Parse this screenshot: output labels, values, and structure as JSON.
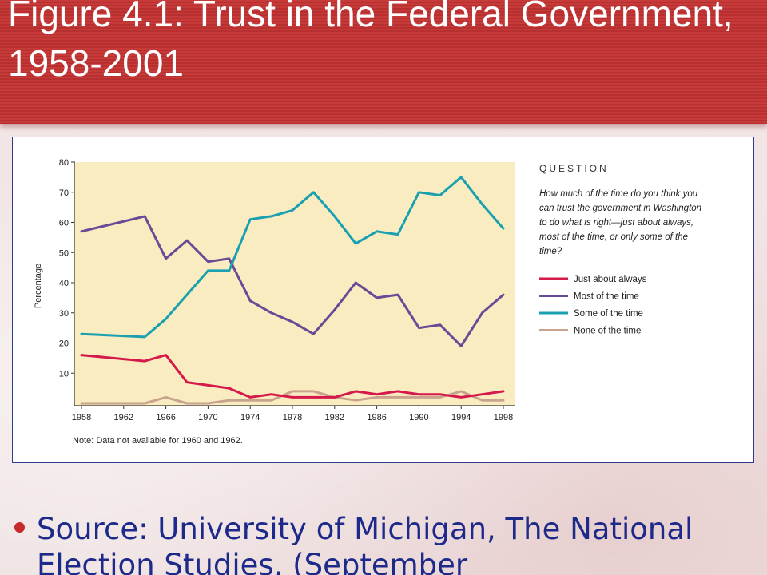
{
  "slide": {
    "title": "Figure 4.1: Trust in the Federal Government, 1958-2001",
    "source": "Source: University of Michigan, The National Election Studies, (September"
  },
  "colors": {
    "header_red": "#c63a3a",
    "plot_background": "#f8ecc0",
    "just_about_always": "#d6194b",
    "most_of_the_time": "#6a4a96",
    "some_of_the_time": "#1aa0b0",
    "none_of_the_time": "#c8a48e",
    "source_text": "#1e2a8a"
  },
  "chart_data": {
    "type": "line",
    "ylabel": "Percentage",
    "ylim": [
      0,
      80
    ],
    "yticks": [
      10,
      20,
      30,
      40,
      50,
      60,
      70,
      80
    ],
    "xlim": [
      1958,
      1998
    ],
    "xticks": [
      1958,
      1962,
      1966,
      1970,
      1974,
      1978,
      1982,
      1986,
      1990,
      1994,
      1998
    ],
    "note": "Note:  Data not available for 1960 and 1962.",
    "question_heading": "QUESTION",
    "question_text": "How much of the time do you think you can trust the government in Washington to do what is right—just about always, most of the time, or only some of the time?",
    "grid": false,
    "legend_position": "right",
    "x": [
      1958,
      1964,
      1966,
      1968,
      1970,
      1972,
      1974,
      1976,
      1978,
      1980,
      1982,
      1984,
      1986,
      1988,
      1990,
      1992,
      1994,
      1996,
      1998
    ],
    "series": [
      {
        "name": "Just about always",
        "color_key": "just_about_always",
        "values": [
          16,
          14,
          16,
          7,
          6,
          5,
          2,
          3,
          2,
          2,
          2,
          4,
          3,
          4,
          3,
          3,
          2,
          3,
          4
        ]
      },
      {
        "name": "Most of the time",
        "color_key": "most_of_the_time",
        "values": [
          57,
          62,
          48,
          54,
          47,
          48,
          34,
          30,
          27,
          23,
          31,
          40,
          35,
          36,
          25,
          26,
          19,
          30,
          36
        ]
      },
      {
        "name": "Some of the time",
        "color_key": "some_of_the_time",
        "values": [
          23,
          22,
          28,
          36,
          44,
          44,
          61,
          62,
          64,
          70,
          62,
          53,
          57,
          56,
          70,
          69,
          75,
          66,
          58
        ]
      },
      {
        "name": "None of the time",
        "color_key": "none_of_the_time",
        "values": [
          0,
          0,
          2,
          0,
          0,
          1,
          1,
          1,
          4,
          4,
          2,
          1,
          2,
          2,
          2,
          2,
          4,
          1,
          1
        ]
      }
    ]
  }
}
